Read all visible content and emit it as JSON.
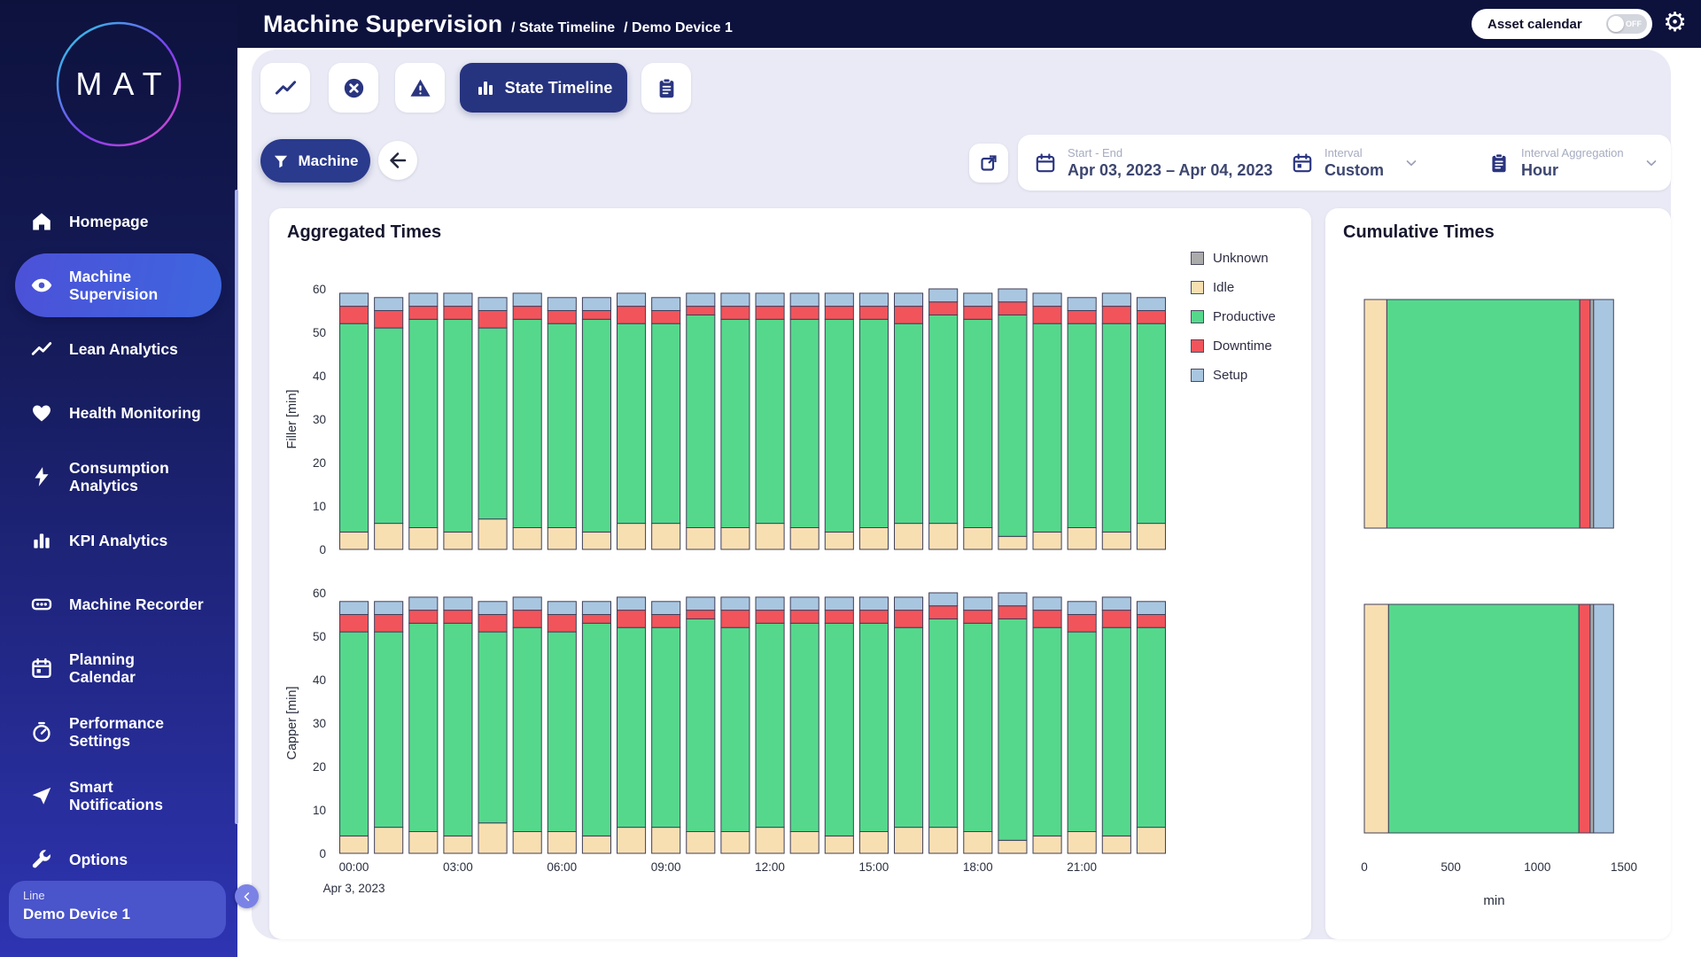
{
  "header": {
    "title": "Machine Supervision",
    "breadcrumbs": [
      "/ State Timeline",
      "/ Demo Device 1"
    ],
    "asset_calendar": {
      "label": "Asset calendar",
      "state": "OFF"
    }
  },
  "sidebar": {
    "logo": "MAT",
    "items": [
      {
        "label": "Homepage",
        "icon": "home",
        "active": false
      },
      {
        "label": "Machine\nSupervision",
        "icon": "eye",
        "active": true
      },
      {
        "label": "Lean Analytics",
        "icon": "trend",
        "active": false
      },
      {
        "label": "Health Monitoring",
        "icon": "heart",
        "active": false
      },
      {
        "label": "Consumption\nAnalytics",
        "icon": "bolt",
        "active": false
      },
      {
        "label": "KPI Analytics",
        "icon": "bar-chart",
        "active": false
      },
      {
        "label": "Machine Recorder",
        "icon": "recorder",
        "active": false
      },
      {
        "label": "Planning\nCalendar",
        "icon": "calendar",
        "active": false
      },
      {
        "label": "Performance\nSettings",
        "icon": "gauge",
        "active": false
      },
      {
        "label": "Smart\nNotifications",
        "icon": "send",
        "active": false
      },
      {
        "label": "Options",
        "icon": "wrench",
        "active": false
      }
    ],
    "device": {
      "type": "Line",
      "name": "Demo Device 1"
    }
  },
  "toolbar": {
    "active_tab_label": "State Timeline"
  },
  "filters": {
    "machine_label": "Machine"
  },
  "controls": {
    "start_end": {
      "label": "Start - End",
      "value": "Apr 03, 2023 – Apr 04, 2023"
    },
    "interval": {
      "label": "Interval",
      "value": "Custom"
    },
    "aggregation": {
      "label": "Interval Aggregation",
      "value": "Hour"
    }
  },
  "cards": {
    "aggregated_title": "Aggregated Times",
    "cumulative_title": "Cumulative Times"
  },
  "legend": [
    {
      "label": "Unknown",
      "color": "#ABABAB"
    },
    {
      "label": "Idle",
      "color": "#F8DFB2"
    },
    {
      "label": "Productive",
      "color": "#55D88C"
    },
    {
      "label": "Downtime",
      "color": "#F2545B"
    },
    {
      "label": "Setup",
      "color": "#A9C6E0"
    }
  ],
  "chart_data": [
    {
      "type": "bar",
      "stacked": true,
      "orientation": "vertical",
      "panel": "top",
      "ylabel": "Filler [min]",
      "ylim": [
        0,
        60
      ],
      "yticks": [
        0,
        10,
        20,
        30,
        40,
        50,
        60
      ],
      "show_x_labels": false,
      "xticks": [],
      "series": [
        {
          "name": "Idle",
          "color": "#F8DFB2",
          "values": [
            4,
            6,
            5,
            4,
            7,
            5,
            5,
            4,
            6,
            6,
            5,
            5,
            6,
            5,
            4,
            5,
            6,
            6,
            5,
            3,
            4,
            5,
            4,
            6
          ]
        },
        {
          "name": "Productive",
          "color": "#55D88C",
          "values": [
            48,
            45,
            48,
            49,
            44,
            48,
            47,
            49,
            46,
            46,
            49,
            48,
            47,
            48,
            49,
            48,
            46,
            48,
            48,
            51,
            48,
            47,
            48,
            46
          ]
        },
        {
          "name": "Downtime",
          "color": "#F2545B",
          "values": [
            4,
            4,
            3,
            3,
            4,
            3,
            3,
            2,
            4,
            3,
            2,
            3,
            3,
            3,
            3,
            3,
            4,
            3,
            3,
            3,
            4,
            3,
            4,
            3
          ]
        },
        {
          "name": "Setup",
          "color": "#A9C6E0",
          "values": [
            3,
            3,
            3,
            3,
            3,
            3,
            3,
            3,
            3,
            3,
            3,
            3,
            3,
            3,
            3,
            3,
            3,
            3,
            3,
            3,
            3,
            3,
            3,
            3
          ]
        }
      ]
    },
    {
      "type": "bar",
      "stacked": true,
      "orientation": "vertical",
      "panel": "bottom",
      "ylabel": "Capper [min]",
      "ylim": [
        0,
        60
      ],
      "yticks": [
        0,
        10,
        20,
        30,
        40,
        50,
        60
      ],
      "show_x_labels": true,
      "x_date_label": "Apr 3, 2023",
      "xticks": [
        {
          "index": 0,
          "label": "00:00"
        },
        {
          "index": 3,
          "label": "03:00"
        },
        {
          "index": 6,
          "label": "06:00"
        },
        {
          "index": 9,
          "label": "09:00"
        },
        {
          "index": 12,
          "label": "12:00"
        },
        {
          "index": 15,
          "label": "15:00"
        },
        {
          "index": 18,
          "label": "18:00"
        },
        {
          "index": 21,
          "label": "21:00"
        }
      ],
      "series": [
        {
          "name": "Idle",
          "color": "#F8DFB2",
          "values": [
            4,
            6,
            5,
            4,
            7,
            5,
            5,
            4,
            6,
            6,
            5,
            5,
            6,
            5,
            4,
            5,
            6,
            6,
            5,
            3,
            4,
            5,
            4,
            6
          ]
        },
        {
          "name": "Productive",
          "color": "#55D88C",
          "values": [
            47,
            45,
            48,
            49,
            44,
            47,
            46,
            49,
            46,
            46,
            49,
            47,
            47,
            48,
            49,
            48,
            46,
            48,
            48,
            51,
            48,
            46,
            48,
            46
          ]
        },
        {
          "name": "Downtime",
          "color": "#F2545B",
          "values": [
            4,
            4,
            3,
            3,
            4,
            4,
            4,
            2,
            4,
            3,
            2,
            4,
            3,
            3,
            3,
            3,
            4,
            3,
            3,
            3,
            4,
            4,
            4,
            3
          ]
        },
        {
          "name": "Setup",
          "color": "#A9C6E0",
          "values": [
            3,
            3,
            3,
            3,
            3,
            3,
            3,
            3,
            3,
            3,
            3,
            3,
            3,
            3,
            3,
            3,
            3,
            3,
            3,
            3,
            3,
            3,
            3,
            3
          ]
        }
      ]
    },
    {
      "type": "bar",
      "stacked": true,
      "orientation": "horizontal",
      "xlim": [
        0,
        1500
      ],
      "xticks": [
        0,
        500,
        1000,
        1500
      ],
      "xlabel": "min",
      "bars": [
        {
          "segments": [
            {
              "name": "Idle",
              "color": "#F8DFB2",
              "value": 130
            },
            {
              "name": "Productive",
              "color": "#55D88C",
              "value": 1115
            },
            {
              "name": "Downtime",
              "color": "#F2545B",
              "value": 60
            },
            {
              "name": "Unknown",
              "color": "#ABABAB",
              "value": 20
            },
            {
              "name": "Setup",
              "color": "#A9C6E0",
              "value": 115
            }
          ]
        },
        {
          "segments": [
            {
              "name": "Idle",
              "color": "#F8DFB2",
              "value": 140
            },
            {
              "name": "Productive",
              "color": "#55D88C",
              "value": 1100
            },
            {
              "name": "Downtime",
              "color": "#F2545B",
              "value": 65
            },
            {
              "name": "Unknown",
              "color": "#ABABAB",
              "value": 20
            },
            {
              "name": "Setup",
              "color": "#A9C6E0",
              "value": 115
            }
          ]
        }
      ]
    }
  ]
}
